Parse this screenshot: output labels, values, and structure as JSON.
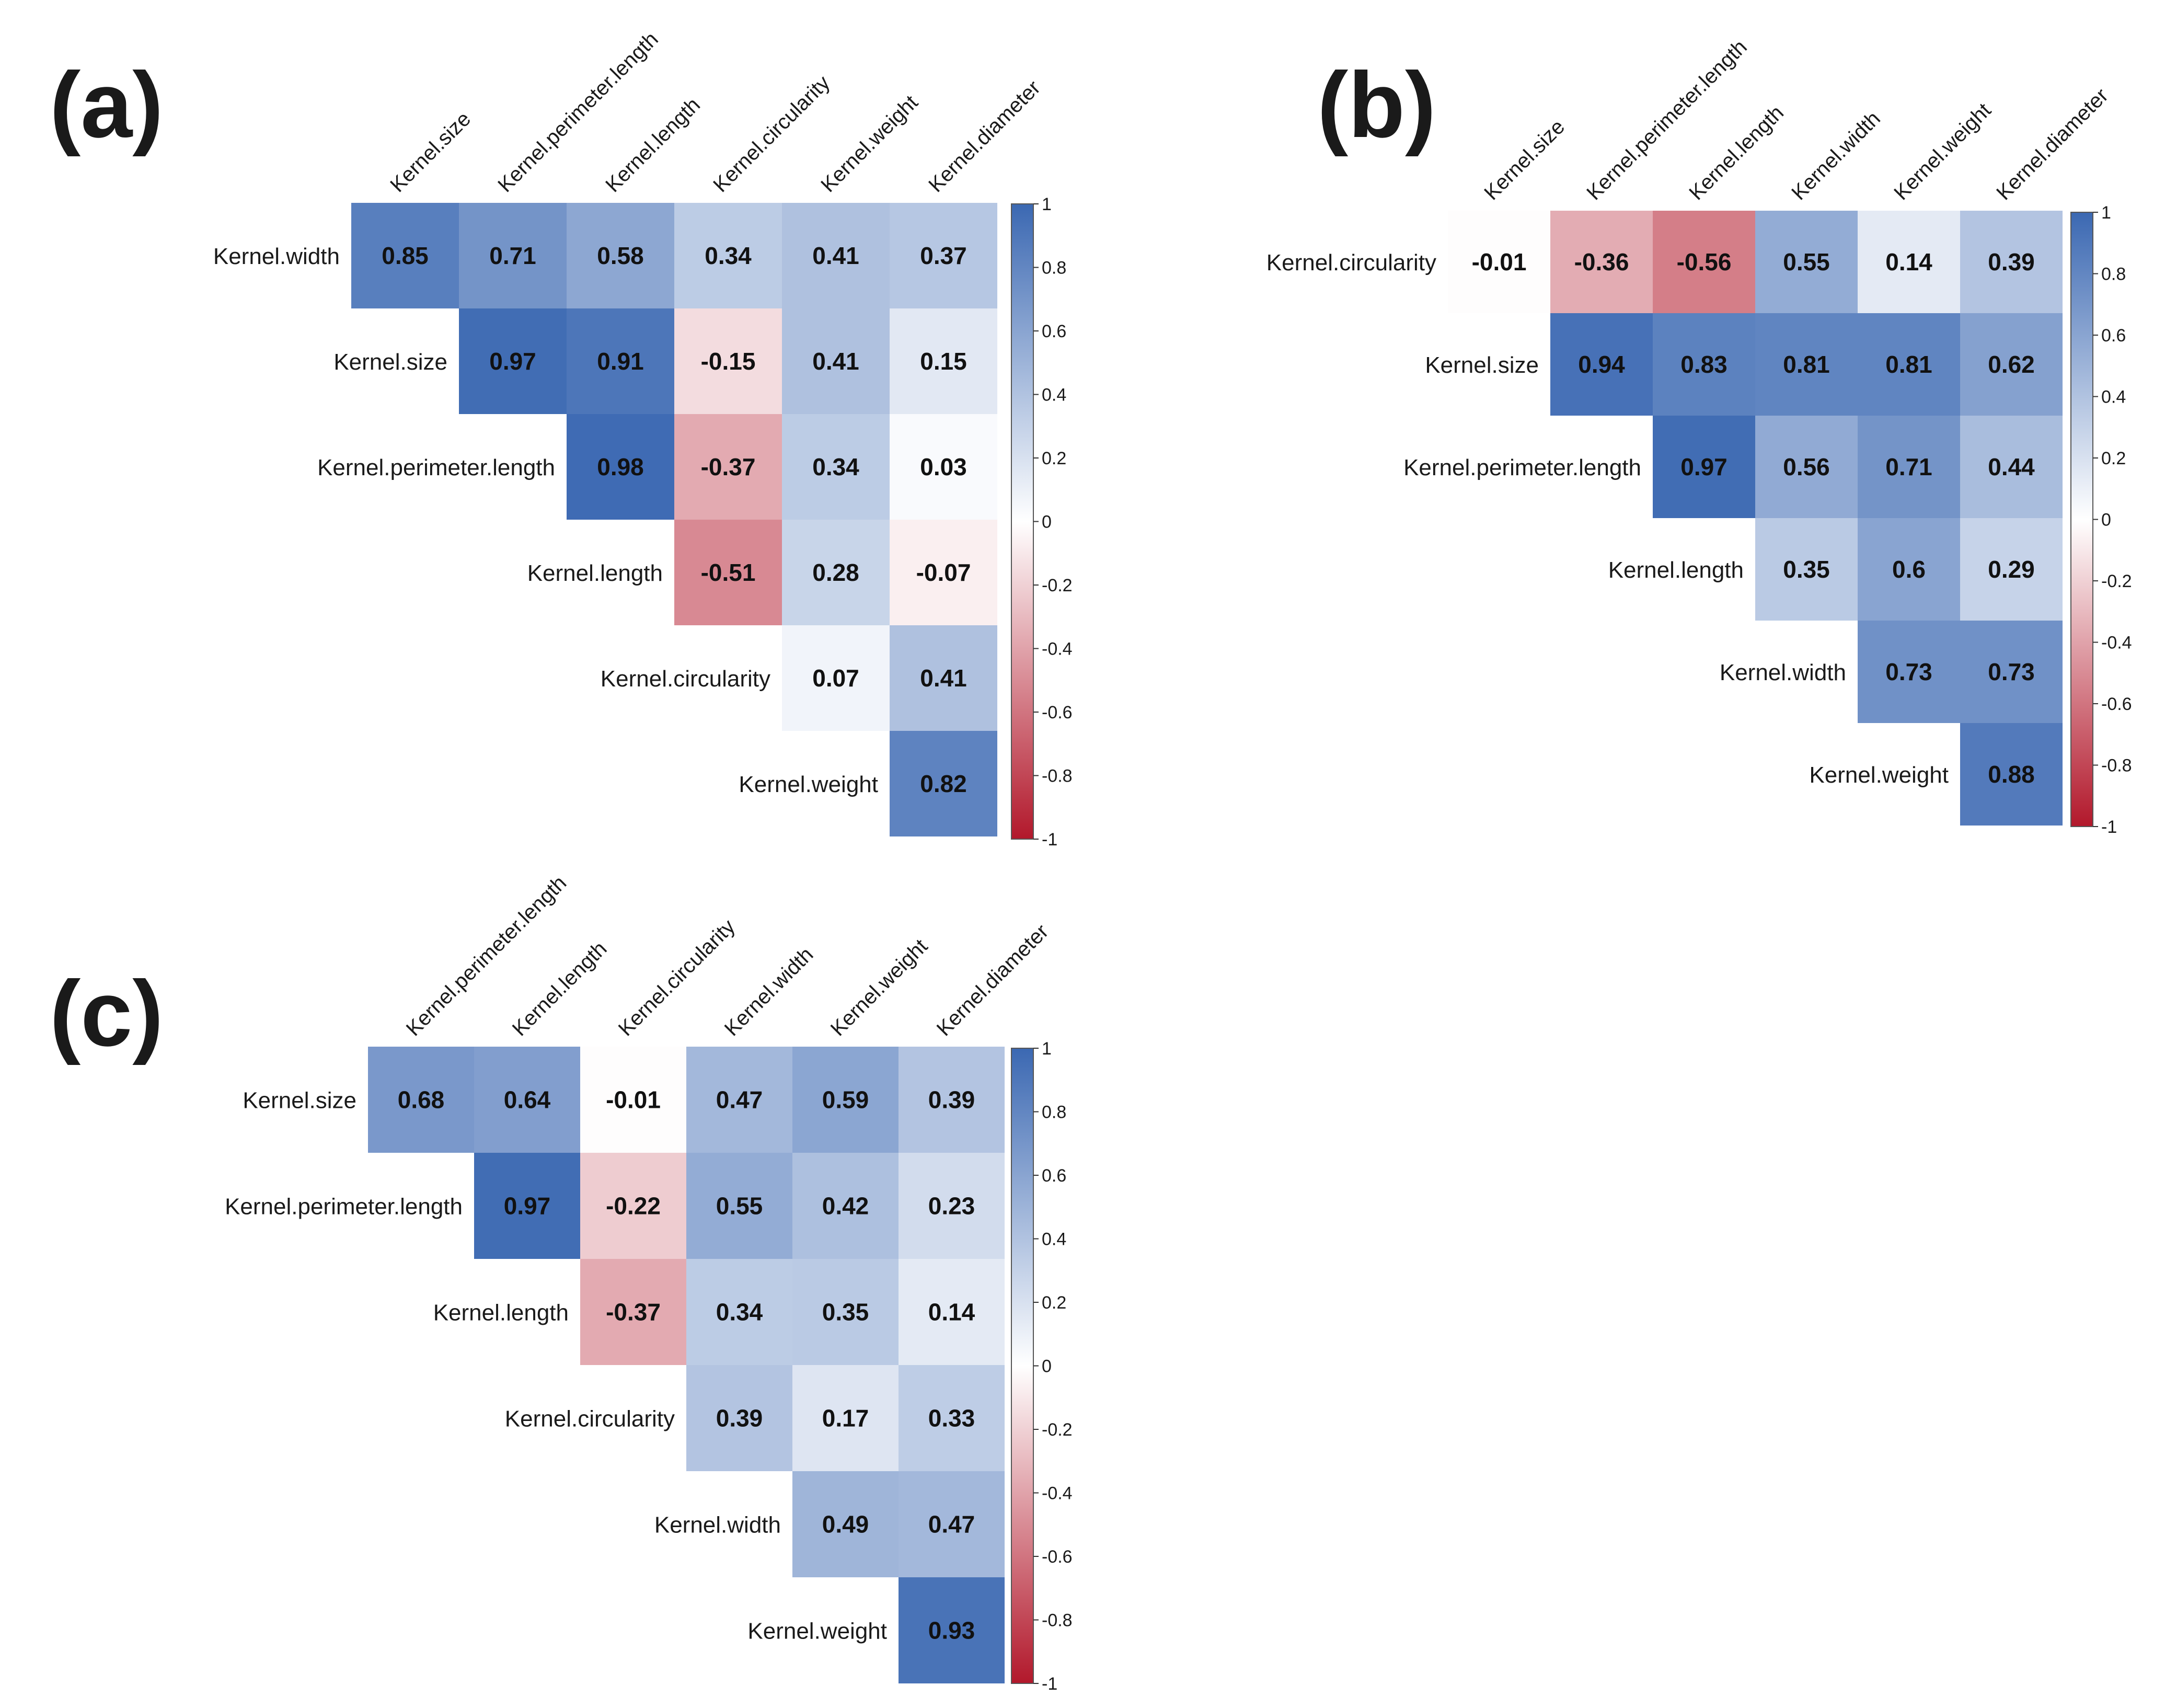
{
  "colors": {
    "positive": "#3b68b2",
    "neutral": "#ffffff",
    "negative": "#b2182b",
    "label_text": "#1a1a1a",
    "cell_text": "#111111"
  },
  "chart_data": [
    {
      "type": "heatmap",
      "panel_label": "(a)",
      "title": "",
      "xlabel": "",
      "ylabel": "",
      "columns": [
        "Kernel.size",
        "Kernel.perimeter.length",
        "Kernel.length",
        "Kernel.circularity",
        "Kernel.weight",
        "Kernel.diameter"
      ],
      "rows": [
        "Kernel.width",
        "Kernel.size",
        "Kernel.perimeter.length",
        "Kernel.length",
        "Kernel.circularity",
        "Kernel.weight"
      ],
      "cells": [
        [
          0.85,
          0.71,
          0.58,
          0.34,
          0.41,
          0.37
        ],
        [
          null,
          0.97,
          0.91,
          -0.15,
          0.41,
          0.15
        ],
        [
          null,
          null,
          0.98,
          -0.37,
          0.34,
          0.03
        ],
        [
          null,
          null,
          null,
          -0.51,
          0.28,
          -0.07
        ],
        [
          null,
          null,
          null,
          null,
          0.07,
          0.41
        ],
        [
          null,
          null,
          null,
          null,
          null,
          0.82
        ]
      ],
      "cell_labels": [
        [
          "0.85",
          "0.71",
          "0.58",
          "0.34",
          "0.41",
          "0.37"
        ],
        [
          "",
          "0.97",
          "0.91",
          "-0.15",
          "0.41",
          "0.15"
        ],
        [
          "",
          "",
          "0.98",
          "-0.37",
          "0.34",
          "0.03"
        ],
        [
          "",
          "",
          "",
          "-0.51",
          "0.28",
          "-0.07"
        ],
        [
          "",
          "",
          "",
          "",
          "0.07",
          "0.41"
        ],
        [
          "",
          "",
          "",
          "",
          "",
          "0.82"
        ]
      ],
      "colorbar": {
        "range": [
          -1,
          1
        ],
        "ticks": [
          1,
          0.8,
          0.6,
          0.4,
          0.2,
          0,
          -0.2,
          -0.4,
          -0.6,
          -0.8,
          -1
        ],
        "tick_labels": [
          "1",
          "0.8",
          "0.6",
          "0.4",
          "0.2",
          "0",
          "-0.2",
          "-0.4",
          "-0.6",
          "-0.8",
          "-1"
        ]
      }
    },
    {
      "type": "heatmap",
      "panel_label": "(b)",
      "title": "",
      "xlabel": "",
      "ylabel": "",
      "columns": [
        "Kernel.size",
        "Kernel.perimeter.length",
        "Kernel.length",
        "Kernel.width",
        "Kernel.weight",
        "Kernel.diameter"
      ],
      "rows": [
        "Kernel.circularity",
        "Kernel.size",
        "Kernel.perimeter.length",
        "Kernel.length",
        "Kernel.width",
        "Kernel.weight"
      ],
      "cells": [
        [
          -0.01,
          -0.36,
          -0.56,
          0.55,
          0.14,
          0.39
        ],
        [
          null,
          0.94,
          0.83,
          0.81,
          0.81,
          0.62
        ],
        [
          null,
          null,
          0.97,
          0.56,
          0.71,
          0.44
        ],
        [
          null,
          null,
          null,
          0.35,
          0.6,
          0.29
        ],
        [
          null,
          null,
          null,
          null,
          0.73,
          0.73
        ],
        [
          null,
          null,
          null,
          null,
          null,
          0.88
        ]
      ],
      "cell_labels": [
        [
          "-0.01",
          "-0.36",
          "-0.56",
          "0.55",
          "0.14",
          "0.39"
        ],
        [
          "",
          "0.94",
          "0.83",
          "0.81",
          "0.81",
          "0.62"
        ],
        [
          "",
          "",
          "0.97",
          "0.56",
          "0.71",
          "0.44"
        ],
        [
          "",
          "",
          "",
          "0.35",
          "0.6",
          "0.29"
        ],
        [
          "",
          "",
          "",
          "",
          "0.73",
          "0.73"
        ],
        [
          "",
          "",
          "",
          "",
          "",
          "0.88"
        ]
      ],
      "colorbar": {
        "range": [
          -1,
          1
        ],
        "ticks": [
          1,
          0.8,
          0.6,
          0.4,
          0.2,
          0,
          -0.2,
          -0.4,
          -0.6,
          -0.8,
          -1
        ],
        "tick_labels": [
          "1",
          "0.8",
          "0.6",
          "0.4",
          "0.2",
          "0",
          "-0.2",
          "-0.4",
          "-0.6",
          "-0.8",
          "-1"
        ]
      }
    },
    {
      "type": "heatmap",
      "panel_label": "(c)",
      "title": "",
      "xlabel": "",
      "ylabel": "",
      "columns": [
        "Kernel.perimeter.length",
        "Kernel.length",
        "Kernel.circularity",
        "Kernel.width",
        "Kernel.weight",
        "Kernel.diameter"
      ],
      "rows": [
        "Kernel.size",
        "Kernel.perimeter.length",
        "Kernel.length",
        "Kernel.circularity",
        "Kernel.width",
        "Kernel.weight"
      ],
      "cells": [
        [
          0.68,
          0.64,
          -0.01,
          0.47,
          0.59,
          0.39
        ],
        [
          null,
          0.97,
          -0.22,
          0.55,
          0.42,
          0.23
        ],
        [
          null,
          null,
          -0.37,
          0.34,
          0.35,
          0.14
        ],
        [
          null,
          null,
          null,
          0.39,
          0.17,
          0.33
        ],
        [
          null,
          null,
          null,
          null,
          0.49,
          0.47
        ],
        [
          null,
          null,
          null,
          null,
          null,
          0.93
        ]
      ],
      "cell_labels": [
        [
          "0.68",
          "0.64",
          "-0.01",
          "0.47",
          "0.59",
          "0.39"
        ],
        [
          "",
          "0.97",
          "-0.22",
          "0.55",
          "0.42",
          "0.23"
        ],
        [
          "",
          "",
          "-0.37",
          "0.34",
          "0.35",
          "0.14"
        ],
        [
          "",
          "",
          "",
          "0.39",
          "0.17",
          "0.33"
        ],
        [
          "",
          "",
          "",
          "",
          "0.49",
          "0.47"
        ],
        [
          "",
          "",
          "",
          "",
          "",
          "0.93"
        ]
      ],
      "colorbar": {
        "range": [
          -1,
          1
        ],
        "ticks": [
          1,
          0.8,
          0.6,
          0.4,
          0.2,
          0,
          -0.2,
          -0.4,
          -0.6,
          -0.8,
          -1
        ],
        "tick_labels": [
          "1",
          "0.8",
          "0.6",
          "0.4",
          "0.2",
          "0",
          "-0.2",
          "-0.4",
          "-0.6",
          "-0.8",
          "-1"
        ]
      }
    }
  ]
}
